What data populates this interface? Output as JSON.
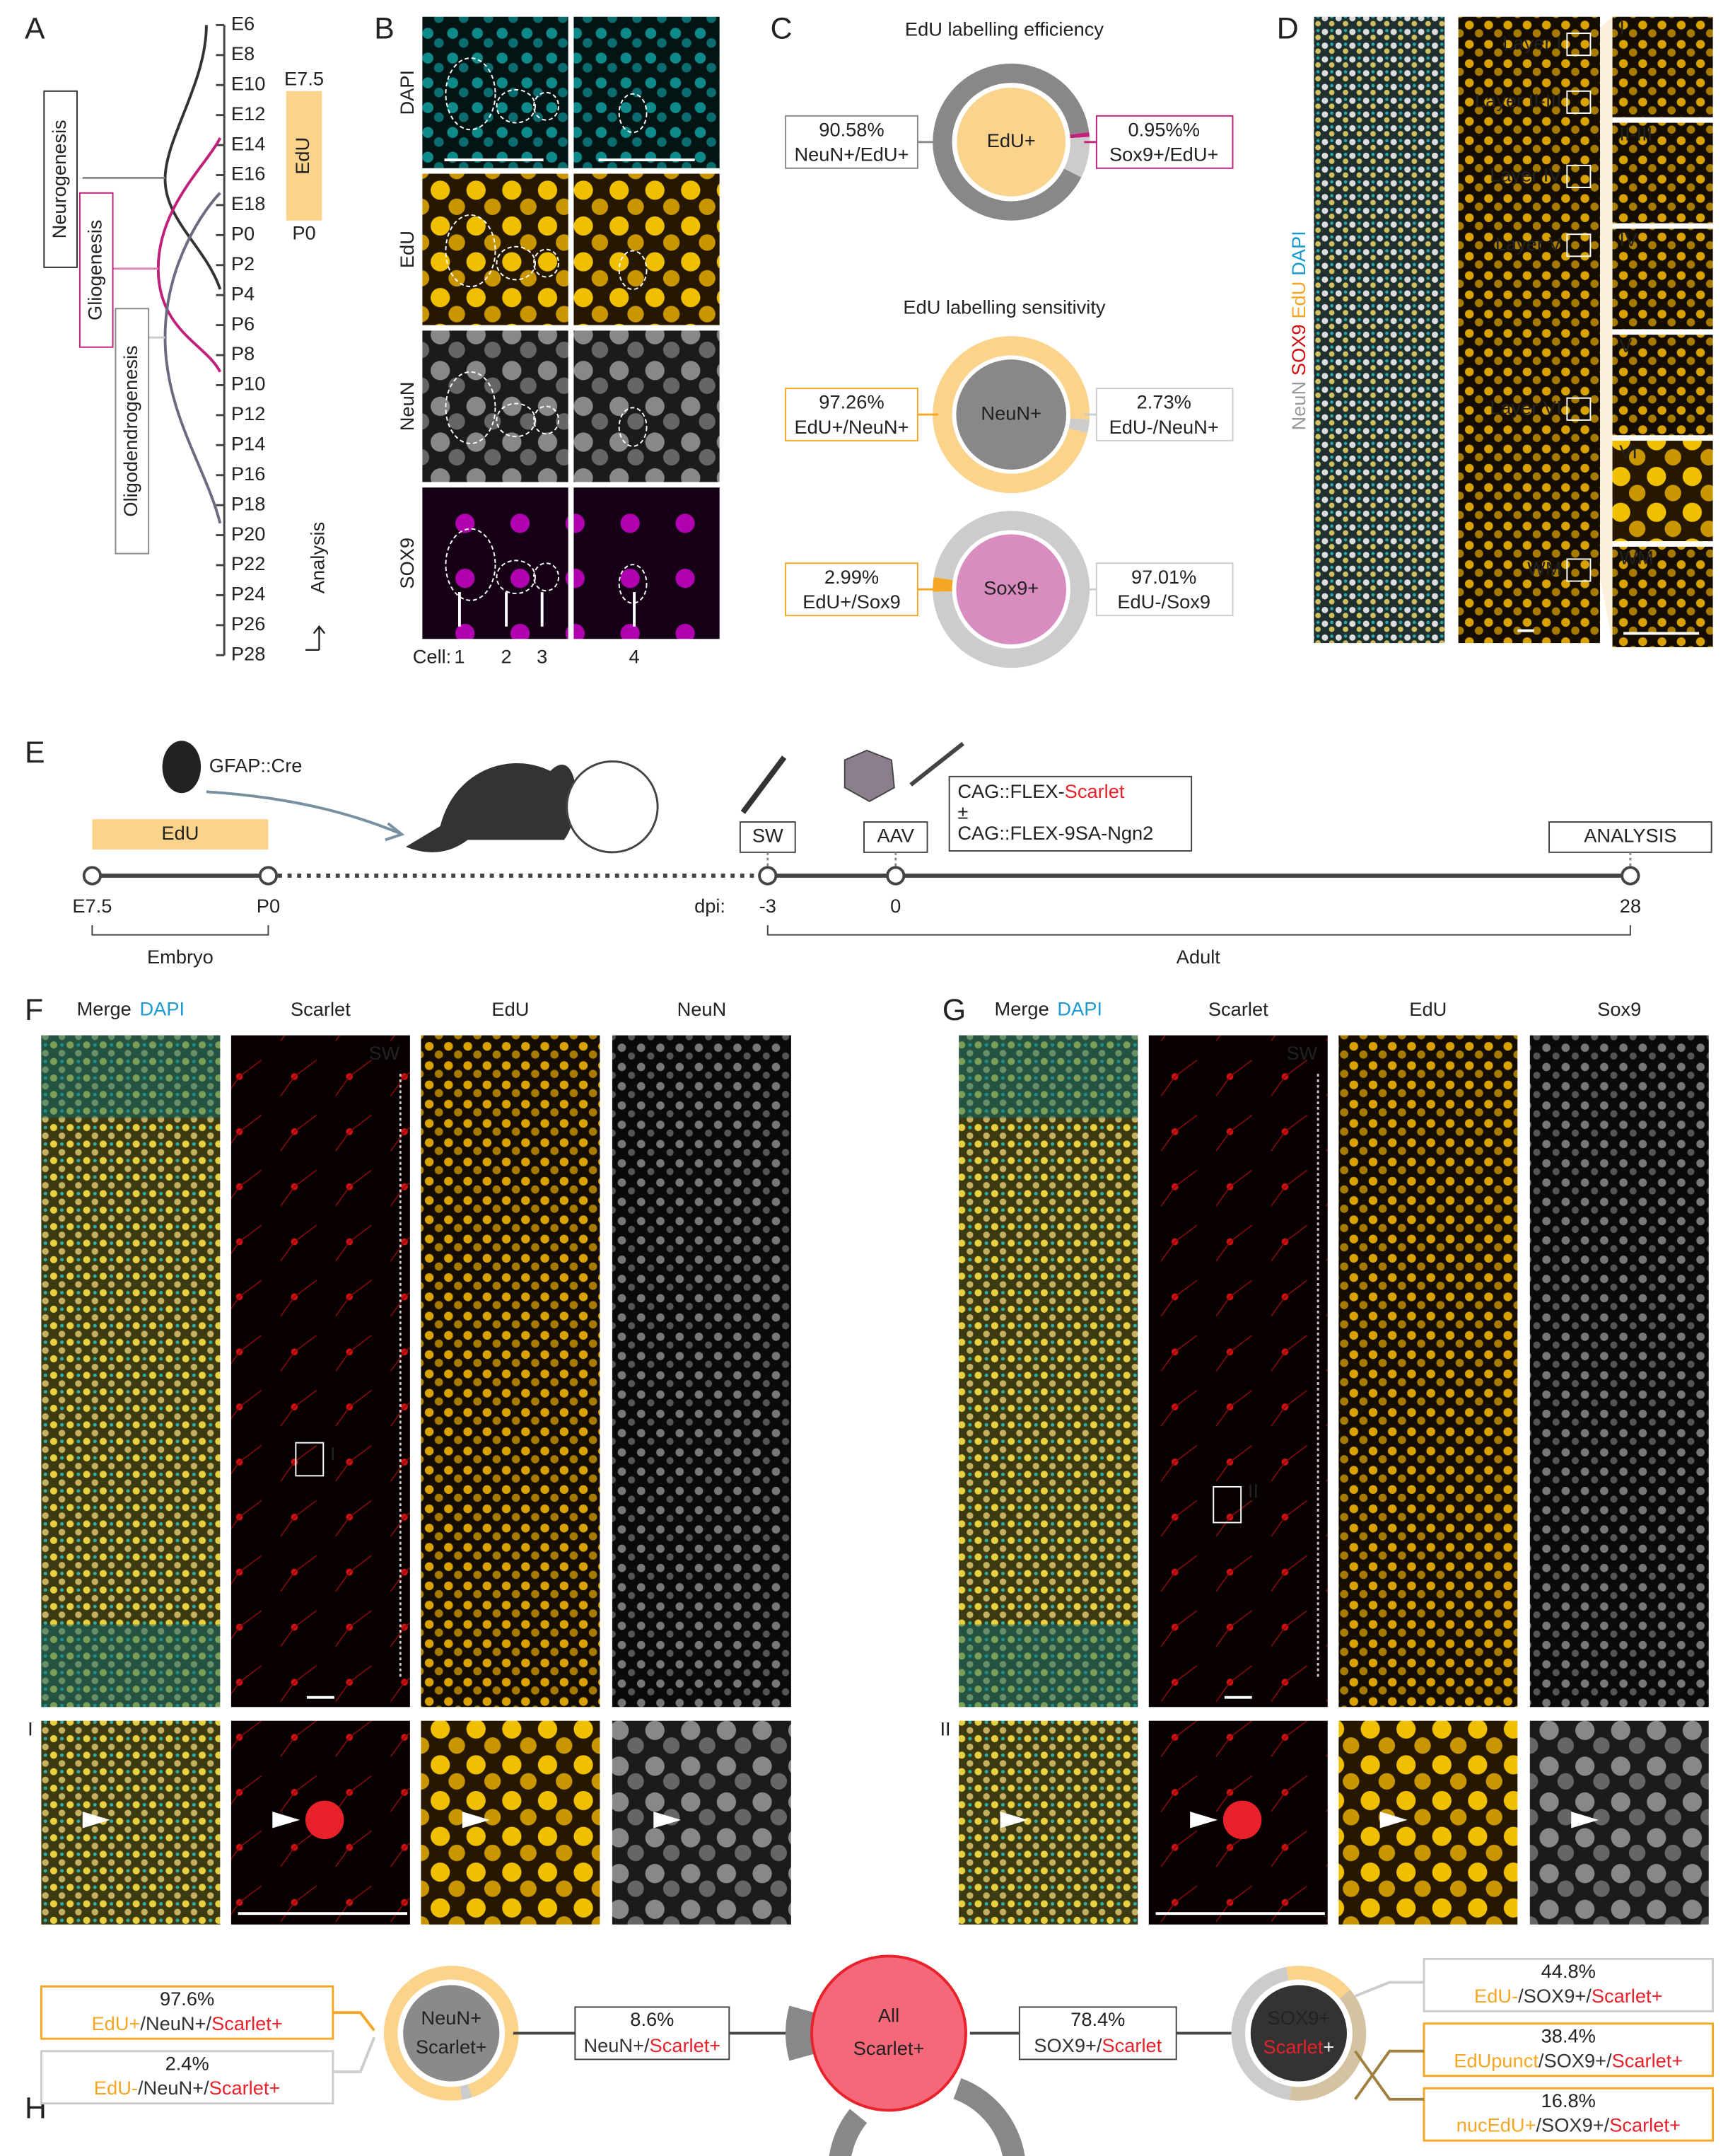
{
  "panels": {
    "a": "A",
    "b": "B",
    "c": "C",
    "d": "D",
    "e": "E",
    "f": "F",
    "g": "G",
    "h": "H"
  },
  "panel_a": {
    "timeline": [
      "E6",
      "E8",
      "E10",
      "E12",
      "E14",
      "E16",
      "E18",
      "P0",
      "P2",
      "P4",
      "P6",
      "P8",
      "P10",
      "P12",
      "P14",
      "P16",
      "P18",
      "P20",
      "P22",
      "P24",
      "P26",
      "P28"
    ],
    "phases": [
      "Neurogenesis",
      "Gliogenesis",
      "Oligodendrogenesis"
    ],
    "edu": "EdU",
    "edu_start": "E7.5",
    "edu_end": "P0",
    "analysis": "Analysis"
  },
  "panel_b": {
    "channels": [
      "DAPI",
      "EdU",
      "NeuN",
      "SOX9"
    ],
    "cell_label": "Cell:",
    "cells": [
      "1",
      "2",
      "3",
      "4"
    ]
  },
  "panel_c": {
    "efficiency_title": "EdU labelling efficiency",
    "sensitivity_title": "EdU labelling sensitivity",
    "donuts": [
      {
        "center": "EdU+",
        "left": {
          "value": 90.58,
          "label": "90.58%",
          "sub": "NeuN+/EdU+"
        },
        "right": {
          "value": 0.95,
          "label": "0.95%%",
          "sub": "Sox9+/EdU+"
        }
      },
      {
        "center": "NeuN+",
        "left": {
          "value": 97.26,
          "label": "97.26%",
          "sub": "EdU+/NeuN+"
        },
        "right": {
          "value": 2.73,
          "label": "2.73%",
          "sub": "EdU-/NeuN+"
        }
      },
      {
        "center": "Sox9+",
        "left": {
          "value": 2.99,
          "label": "2.99%",
          "sub": "EdU+/Sox9"
        },
        "right": {
          "value": 97.01,
          "label": "97.01%",
          "sub": "EdU-/Sox9"
        }
      }
    ]
  },
  "panel_d": {
    "stain": [
      "NeuN",
      "SOX9",
      "EdU",
      "DAPI"
    ],
    "layers": [
      "Layer I",
      "Layer II-III",
      "Layer IV",
      "Layer V",
      "Layer VI",
      "WM"
    ],
    "insets": [
      "I",
      "II-III",
      "IV",
      "V",
      "VI",
      "WM"
    ]
  },
  "panel_e": {
    "mouse": "GFAP::Cre",
    "edu": "EdU",
    "embryo_ticks": [
      "E7.5",
      "P0"
    ],
    "embryo": "Embryo",
    "dpi": "dpi:",
    "adult_ticks": [
      "-3",
      "0",
      "28"
    ],
    "adult": "Adult",
    "steps": [
      "SW",
      "AAV",
      "ANALYSIS"
    ],
    "construct": [
      "CAG::FLEX-",
      "Scarlet",
      "±",
      "CAG::FLEX-9SA-Ngn2"
    ]
  },
  "panel_f": {
    "headers": [
      "Merge",
      "DAPI",
      "Scarlet",
      "EdU",
      "NeuN"
    ],
    "sw": "SW",
    "inset": "I"
  },
  "panel_g": {
    "headers": [
      "Merge",
      "DAPI",
      "Scarlet",
      "EdU",
      "Sox9"
    ],
    "sw": "SW",
    "inset": "II"
  },
  "panel_h": {
    "neun": {
      "center": [
        "NeuN+",
        "Scarlet+"
      ],
      "edu_pos": {
        "value": 97.6,
        "label": "97.6%",
        "sub": [
          "EdU+",
          "/NeuN+/",
          "Scarlet+"
        ]
      },
      "edu_neg": {
        "value": 2.4,
        "label": "2.4%",
        "sub": [
          "EdU-",
          "/NeuN+/",
          "Scarlet+"
        ]
      }
    },
    "neun_link": {
      "value": 8.6,
      "label": "8.6%",
      "sub": [
        "NeuN+/",
        "Scarlet+"
      ]
    },
    "all": [
      "All",
      "Scarlet+"
    ],
    "sox_link": {
      "value": 78.4,
      "label": "78.4%",
      "sub": [
        "SOX9+/",
        "Scarlet"
      ]
    },
    "sox": {
      "center": [
        "SOX9+",
        "Scarlet",
        "+"
      ],
      "edu_neg": {
        "value": 44.8,
        "label": "44.8%",
        "sub": [
          "EdU-",
          "/SOX9+/",
          "Scarlet+"
        ]
      },
      "edu_punct": {
        "value": 38.4,
        "label": "38.4%",
        "sub": [
          "EdUpunct",
          "/SOX9+/",
          "Scarlet+"
        ]
      },
      "edu_nuc": {
        "value": 16.8,
        "label": "16.8%",
        "sub": [
          "nucEdU+",
          "/SOX9+/",
          "Scarlet+"
        ]
      }
    }
  }
}
